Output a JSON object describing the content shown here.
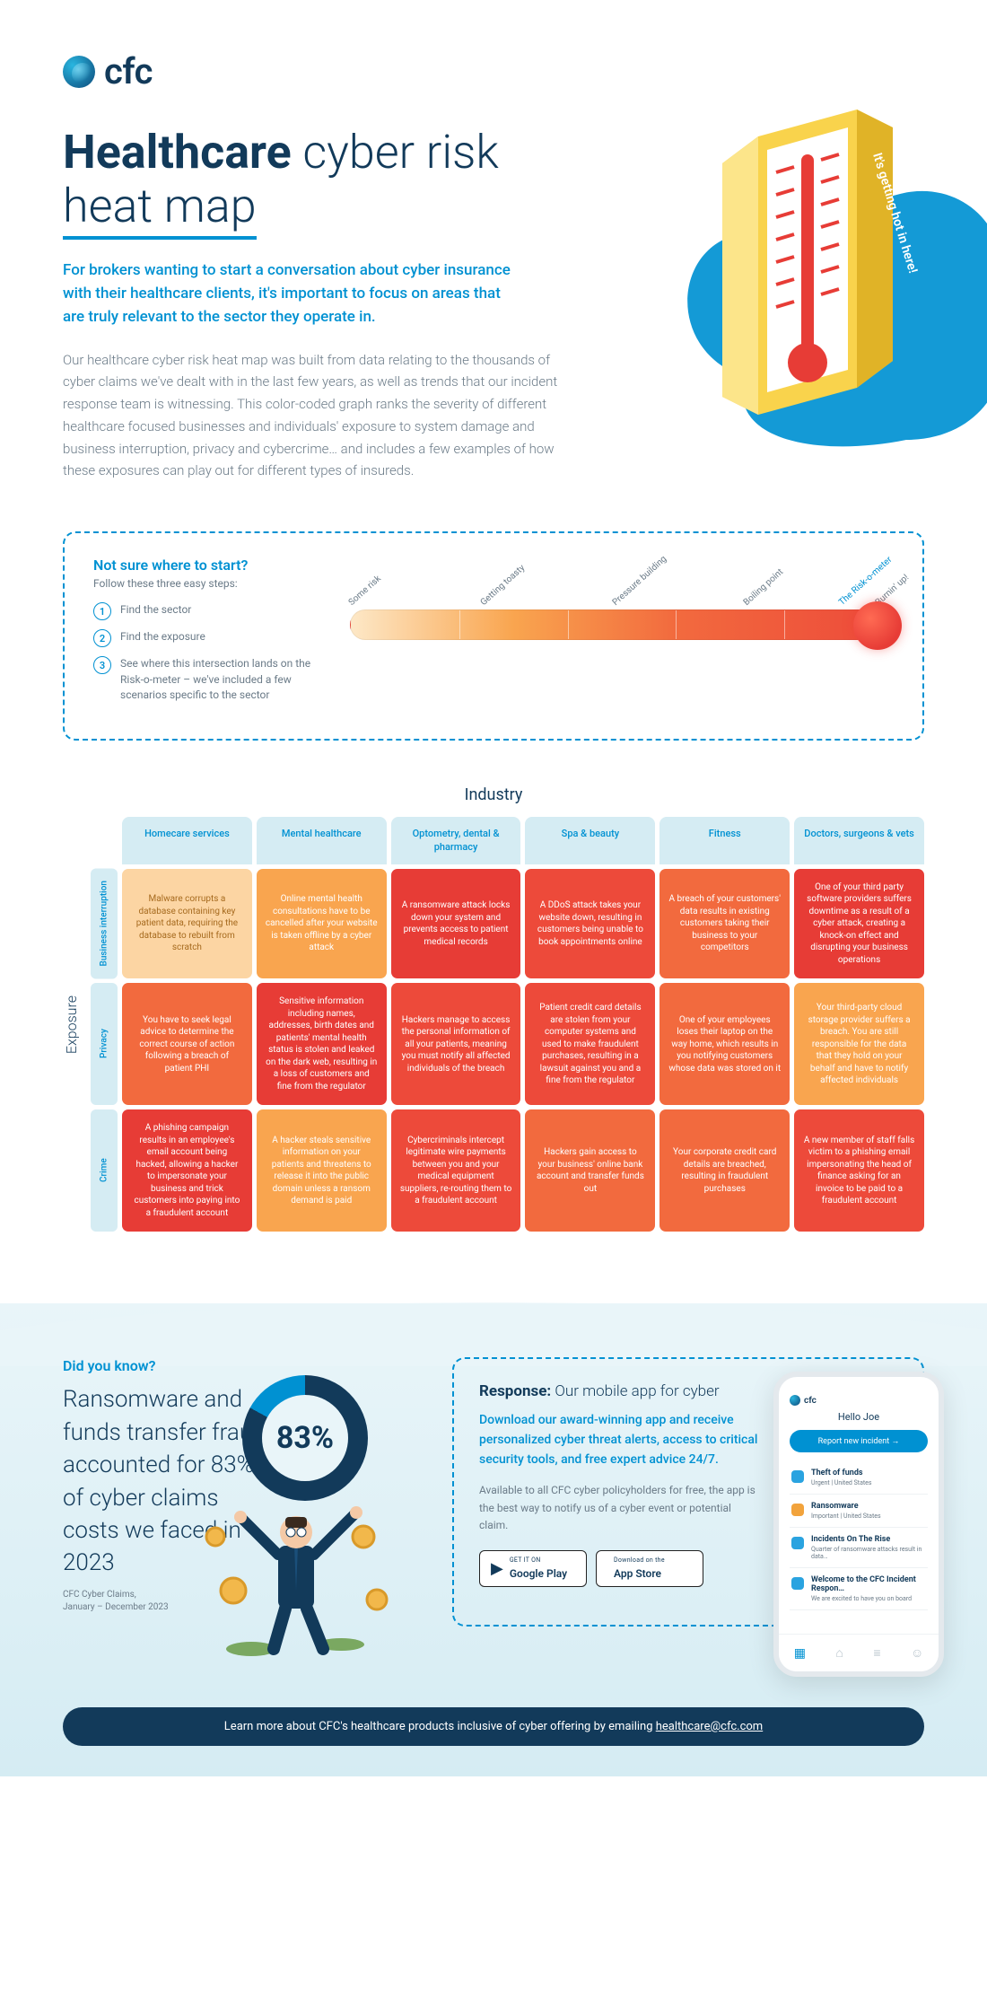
{
  "brand": {
    "name": "cfc"
  },
  "hero": {
    "title_bold": "Healthcare",
    "title_rest": " cyber risk ",
    "title_underline": "heat map",
    "lede": "For brokers wanting to start a conversation about cyber insurance with their healthcare clients, it's important to focus on areas that are truly relevant to the sector they operate in.",
    "body": "Our healthcare cyber risk heat map was built from data relating to the thousands of cyber claims we've dealt with in the last few years, as well as trends that our incident response team is witnessing. This color-coded graph ranks the severity of different healthcare focused businesses and individuals' exposure to system damage and business interruption, privacy and cybercrime… and includes a few examples of how these exposures can play out for different types of insureds.",
    "thermo_tag": "It's getting hot in here!"
  },
  "steps": {
    "heading": "Not sure where to start?",
    "sub": "Follow these three easy steps:",
    "items": [
      "Find the sector",
      "Find the exposure",
      "See where this intersection lands on the Risk-o-meter – we've included a few scenarios specific to the sector"
    ],
    "meter_labels": [
      "Some risk",
      "Getting toasty",
      "Pressure building",
      "Boiling point",
      "Burnin' up!"
    ],
    "meter_title": "The Risk-o-meter"
  },
  "heat": {
    "axis_x": "Industry",
    "axis_y": "Exposure",
    "columns": [
      "Homecare services",
      "Mental healthcare",
      "Optometry, dental & pharmacy",
      "Spa & beauty",
      "Fitness",
      "Doctors, surgeons & vets"
    ],
    "rows": [
      "Business interruption",
      "Privacy",
      "Crime"
    ],
    "cells": [
      [
        {
          "level": 1,
          "text": "Malware corrupts a database containing key patient data, requiring the database to rebuilt from scratch"
        },
        {
          "level": 2,
          "text": "Online mental health consultations have to be cancelled after your website is taken offline by a cyber attack"
        },
        {
          "level": 5,
          "text": "A ransomware attack locks down your system and prevents access to patient medical records"
        },
        {
          "level": 4,
          "text": "A DDoS attack takes your website down, resulting in customers being unable to book appointments online"
        },
        {
          "level": 3,
          "text": "A breach of your customers' data results in existing customers taking their business to your competitors"
        },
        {
          "level": 5,
          "text": "One of your third party software providers suffers downtime as a result of a cyber attack, creating a knock-on effect and disrupting your business operations"
        }
      ],
      [
        {
          "level": 3,
          "text": "You have to seek legal advice to determine the correct course of action following a breach of patient PHI"
        },
        {
          "level": 5,
          "text": "Sensitive information including names, addresses, birth dates and patients' mental health status is stolen and leaked on the dark web, resulting in a loss of customers and fine from the regulator"
        },
        {
          "level": 4,
          "text": "Hackers manage to access the personal information of all your patients, meaning you must notify all affected individuals of the breach"
        },
        {
          "level": 4,
          "text": "Patient credit card details are stolen from your computer systems and used to make fraudulent purchases, resulting in a lawsuit against you and a fine from the regulator"
        },
        {
          "level": 3,
          "text": "One of your employees loses their laptop on the way home, which results in you notifying customers whose data was stored on it"
        },
        {
          "level": 2,
          "text": "Your third-party cloud storage provider suffers a breach. You are still responsible for the data that they hold on your behalf and have to notify affected individuals"
        }
      ],
      [
        {
          "level": 5,
          "text": "A phishing campaign results in an employee's email account being hacked, allowing a hacker to impersonate your business and trick customers into paying into a fraudulent account"
        },
        {
          "level": 2,
          "text": "A hacker steals sensitive information on your patients and threatens to release it into the public domain unless a ransom demand is paid"
        },
        {
          "level": 4,
          "text": "Cybercriminals intercept legitimate wire payments between you and your medical equipment suppliers, re-routing them to a fraudulent account"
        },
        {
          "level": 3,
          "text": "Hackers gain access to your business' online bank account and transfer funds out"
        },
        {
          "level": 3,
          "text": "Your corporate credit card details are breached, resulting in fraudulent purchases"
        },
        {
          "level": 4,
          "text": "A new member of staff falls victim to a phishing email impersonating the head of finance asking for an invoice to be paid to a fraudulent account"
        }
      ]
    ]
  },
  "dyk": {
    "heading": "Did you know?",
    "stat_text": "Ransomware and funds transfer fraud accounted for 83% of cyber claims costs we faced in 2023",
    "stat_value": "83%",
    "source": "CFC Cyber Claims,\nJanuary – December 2023"
  },
  "response": {
    "heading_bold": "Response:",
    "heading_rest": " Our mobile app for cyber",
    "lede": "Download our award-winning app and receive personalized cyber threat alerts, access to critical security tools, and free expert advice 24/7.",
    "body": "Available to all CFC cyber policyholders for free, the app is the best way to notify us of a cyber event or potential claim.",
    "store_google_small": "GET IT ON",
    "store_google": "Google Play",
    "store_apple_small": "Download on the",
    "store_apple": "App Store",
    "phone": {
      "greeting": "Hello Joe",
      "cta": "Report new incident  →",
      "items": [
        {
          "color": "#2aa3e0",
          "title": "Theft of funds",
          "sub": "Urgent | United States"
        },
        {
          "color": "#f2a33c",
          "title": "Ransomware",
          "sub": "Important | United States"
        },
        {
          "color": "#2aa3e0",
          "title": "Incidents On The Rise",
          "sub": "Quarter of ransomware attacks result in data…"
        },
        {
          "color": "#2aa3e0",
          "title": "Welcome to the CFC Incident Respon…",
          "sub": "We are excited to have you on board"
        }
      ]
    }
  },
  "footer": {
    "text": "Learn more about CFC's healthcare products inclusive of cyber offering by emailing ",
    "email": "healthcare@cfc.com"
  }
}
